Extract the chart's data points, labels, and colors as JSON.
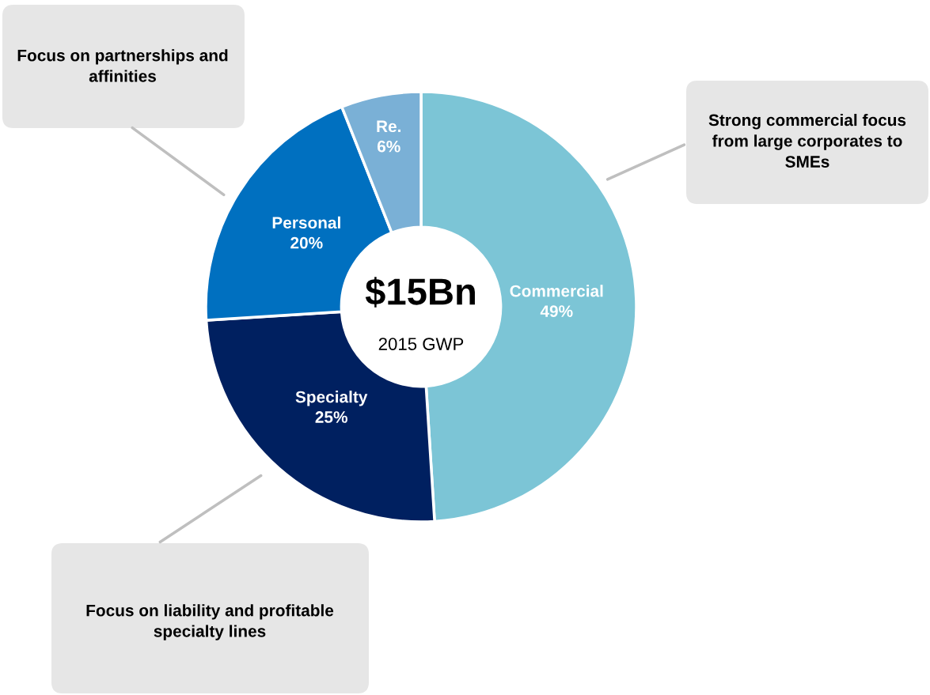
{
  "chart_data": {
    "type": "donut",
    "categories": [
      "Commercial",
      "Specialty",
      "Personal",
      "Re."
    ],
    "values": [
      49,
      25,
      20,
      6
    ],
    "colors": [
      "#7cc5d6",
      "#002060",
      "#0070c0",
      "#7ab0d6"
    ],
    "value_labels": [
      "49%",
      "25%",
      "20%",
      "6%"
    ],
    "legend": false,
    "annotations": [
      "$15Bn",
      "2015 GWP",
      "Focus on partnerships and\naffinities",
      "Strong commercial focus\nfrom large corporates to\nSMEs",
      "Focus on liability and profitable\nspecialty lines"
    ]
  }
}
